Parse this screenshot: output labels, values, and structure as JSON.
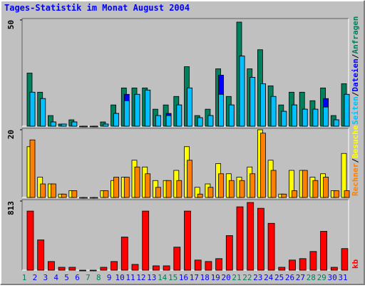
{
  "chart_data": [
    {
      "type": "bar",
      "title": "Tages-Statistik im Monat August 2004",
      "ylim": [
        0,
        50
      ],
      "yticks": [
        50
      ],
      "legend_separator": "/",
      "series": [
        {
          "name": "Anfragen",
          "color": "#00805c",
          "values": [
            25,
            16,
            5,
            1,
            3,
            0,
            0,
            2,
            10,
            18,
            18,
            18,
            8,
            10,
            14,
            28,
            5,
            8,
            27,
            14,
            49,
            27,
            36,
            19,
            10,
            16,
            16,
            12,
            18,
            5,
            20
          ]
        },
        {
          "name": "Dateien",
          "color": "#0000ff",
          "values": [
            16,
            13,
            2,
            1,
            2,
            0,
            0,
            1,
            6,
            15,
            15,
            17,
            5,
            6,
            10,
            18,
            4,
            5,
            24,
            10,
            33,
            23,
            20,
            14,
            7,
            10,
            8,
            8,
            13,
            3,
            15
          ]
        },
        {
          "name": "Seiten",
          "color": "#00c0ff",
          "values": [
            16,
            13,
            2,
            1,
            2,
            0,
            0,
            1,
            6,
            12,
            15,
            17,
            5,
            5,
            10,
            18,
            4,
            5,
            15,
            10,
            33,
            23,
            20,
            14,
            7,
            10,
            8,
            8,
            9,
            3,
            15
          ]
        }
      ]
    },
    {
      "type": "bar",
      "ylim": [
        0,
        20
      ],
      "yticks": [
        20
      ],
      "legend_separator": "/",
      "series": [
        {
          "name": "Besuche",
          "color": "#ffff00",
          "values": [
            15,
            6,
            4,
            1,
            2,
            0,
            0,
            2,
            5,
            6,
            11,
            9,
            5,
            5,
            8,
            15,
            3,
            4,
            10,
            7,
            6,
            9,
            20,
            11,
            1,
            8,
            8,
            6,
            7,
            2,
            13
          ]
        },
        {
          "name": "Rechner",
          "color": "#ff8000",
          "values": [
            17,
            4,
            4,
            1,
            2,
            0,
            0,
            2,
            6,
            6,
            9,
            7,
            3,
            5,
            5,
            11,
            1,
            3,
            7,
            5,
            5,
            7,
            19,
            8,
            1,
            2,
            8,
            5,
            6,
            2,
            2
          ]
        }
      ]
    },
    {
      "type": "bar",
      "ylim": [
        0,
        813
      ],
      "yticks": [
        813
      ],
      "categories": [
        "1",
        "2",
        "3",
        "4",
        "5",
        "6",
        "7",
        "8",
        "9",
        "10",
        "11",
        "12",
        "13",
        "14",
        "15",
        "16",
        "17",
        "18",
        "19",
        "20",
        "21",
        "22",
        "23",
        "24",
        "25",
        "26",
        "27",
        "28",
        "29",
        "30",
        "31"
      ],
      "label_colors": [
        "#00805c",
        "#0000ff",
        "#0000ff",
        "#0000ff",
        "#0000ff",
        "#0000ff",
        "#00805c",
        "#00805c",
        "#0000ff",
        "#0000ff",
        "#0000ff",
        "#0000ff",
        "#0000ff",
        "#00805c",
        "#00805c",
        "#0000ff",
        "#0000ff",
        "#0000ff",
        "#0000ff",
        "#0000ff",
        "#00805c",
        "#00805c",
        "#0000ff",
        "#0000ff",
        "#0000ff",
        "#0000ff",
        "#0000ff",
        "#00805c",
        "#00805c",
        "#0000ff",
        "#0000ff"
      ],
      "series": [
        {
          "name": "kb",
          "color": "#ff0000",
          "values": [
            695,
            356,
            102,
            34,
            34,
            0,
            0,
            34,
            102,
            390,
            68,
            695,
            51,
            51,
            271,
            695,
            119,
            102,
            136,
            407,
            745,
            796,
            728,
            551,
            34,
            119,
            136,
            220,
            457,
            34,
            254
          ]
        }
      ]
    }
  ]
}
